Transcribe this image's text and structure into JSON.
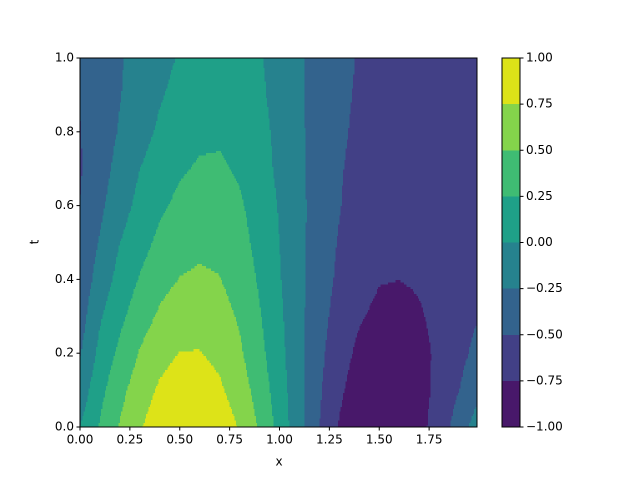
{
  "chart_data": {
    "type": "contour",
    "xlabel": "x",
    "ylabel": "t",
    "x": [
      0,
      0.1,
      0.2,
      0.3,
      0.4,
      0.5,
      0.6,
      0.7,
      0.8,
      0.9,
      1.0,
      1.1,
      1.2,
      1.3,
      1.4,
      1.5,
      1.6,
      1.7,
      1.8,
      1.9,
      2.0
    ],
    "y": [
      0,
      0.1,
      0.2,
      0.3,
      0.4,
      0.5,
      0.6,
      0.7,
      0.8,
      0.9,
      1.0
    ],
    "z": [
      [
        0,
        0.27,
        0.52,
        0.73,
        0.89,
        0.98,
        0.99,
        0.91,
        0.73,
        0.47,
        0.16,
        -0.17,
        -0.5,
        -0.77,
        -0.94,
        -1.0,
        -0.96,
        -0.83,
        -0.63,
        -0.38,
        -0.1
      ],
      [
        -0.15,
        0.18,
        0.43,
        0.63,
        0.79,
        0.87,
        0.88,
        0.79,
        0.63,
        0.39,
        0.12,
        -0.18,
        -0.47,
        -0.71,
        -0.87,
        -0.94,
        -0.92,
        -0.83,
        -0.69,
        -0.5,
        -0.3
      ],
      [
        -0.27,
        0.07,
        0.31,
        0.52,
        0.67,
        0.76,
        0.76,
        0.69,
        0.54,
        0.32,
        0.08,
        -0.19,
        -0.44,
        -0.66,
        -0.8,
        -0.87,
        -0.87,
        -0.81,
        -0.71,
        -0.57,
        -0.42
      ],
      [
        -0.36,
        -0.03,
        0.19,
        0.39,
        0.54,
        0.64,
        0.66,
        0.6,
        0.47,
        0.27,
        0.05,
        -0.19,
        -0.41,
        -0.6,
        -0.73,
        -0.8,
        -0.81,
        -0.77,
        -0.7,
        -0.61,
        -0.5
      ],
      [
        -0.42,
        -0.14,
        0.09,
        0.27,
        0.42,
        0.51,
        0.54,
        0.51,
        0.39,
        0.22,
        0.02,
        -0.19,
        -0.38,
        -0.55,
        -0.67,
        -0.74,
        -0.75,
        -0.73,
        -0.68,
        -0.62,
        -0.55
      ],
      [
        -0.46,
        -0.23,
        0,
        0.16,
        0.31,
        0.41,
        0.45,
        0.43,
        0.33,
        0.18,
        0,
        -0.19,
        -0.37,
        -0.52,
        -0.63,
        -0.7,
        -0.72,
        -0.71,
        -0.67,
        -0.63,
        -0.57
      ],
      [
        -0.5,
        -0.3,
        -0.1,
        0.07,
        0.21,
        0.31,
        0.37,
        0.36,
        0.28,
        0.15,
        -0.02,
        -0.19,
        -0.36,
        -0.49,
        -0.6,
        -0.67,
        -0.69,
        -0.68,
        -0.66,
        -0.62,
        -0.58
      ],
      [
        -0.52,
        -0.35,
        -0.17,
        0,
        0.12,
        0.22,
        0.28,
        0.28,
        0.22,
        0.1,
        -0.05,
        -0.21,
        -0.35,
        -0.48,
        -0.57,
        -0.63,
        -0.66,
        -0.65,
        -0.64,
        -0.61,
        -0.58
      ],
      [
        -0.51,
        -0.37,
        -0.23,
        -0.09,
        0.04,
        0.14,
        0.2,
        0.22,
        0.17,
        0.07,
        -0.06,
        -0.21,
        -0.35,
        -0.46,
        -0.55,
        -0.61,
        -0.64,
        -0.64,
        -0.62,
        -0.6,
        -0.58
      ],
      [
        -0.49,
        -0.37,
        -0.26,
        -0.14,
        -0.02,
        0.07,
        0.14,
        0.16,
        0.12,
        0.04,
        -0.08,
        -0.22,
        -0.34,
        -0.45,
        -0.53,
        -0.59,
        -0.62,
        -0.62,
        -0.61,
        -0.6,
        -0.58
      ],
      [
        -0.47,
        -0.37,
        -0.27,
        -0.17,
        -0.07,
        0.02,
        0.09,
        0.11,
        0.09,
        0.02,
        -0.09,
        -0.22,
        -0.33,
        -0.43,
        -0.52,
        -0.57,
        -0.6,
        -0.6,
        -0.6,
        -0.59,
        -0.58
      ]
    ],
    "levels": [
      -1,
      -0.75,
      -0.5,
      -0.25,
      0,
      0.25,
      0.5,
      0.75,
      1
    ],
    "colors": [
      "#48186a",
      "#424086",
      "#33638d",
      "#26828e",
      "#1fa088",
      "#3fbc73",
      "#84d44b",
      "#dde318"
    ],
    "xlim": [
      0,
      1.99
    ],
    "ylim": [
      0,
      1
    ],
    "xticks": [
      {
        "value": 0,
        "label": "0.00"
      },
      {
        "value": 0.25,
        "label": "0.25"
      },
      {
        "value": 0.5,
        "label": "0.50"
      },
      {
        "value": 0.75,
        "label": "0.75"
      },
      {
        "value": 1,
        "label": "1.00"
      },
      {
        "value": 1.25,
        "label": "1.25"
      },
      {
        "value": 1.5,
        "label": "1.50"
      },
      {
        "value": 1.75,
        "label": "1.75"
      }
    ],
    "yticks": [
      {
        "value": 0,
        "label": "0.0"
      },
      0.2,
      0.4,
      0.6,
      0.8,
      {
        "value": 1,
        "label": "1.0"
      }
    ],
    "cticks": [
      {
        "value": -1,
        "label": "−1.00"
      },
      {
        "value": -0.75,
        "label": "−0.75"
      },
      {
        "value": -0.5,
        "label": "−0.50"
      },
      {
        "value": -0.25,
        "label": "−0.25"
      },
      {
        "value": 0,
        "label": "0.00"
      },
      {
        "value": 0.25,
        "label": "0.25"
      },
      {
        "value": 0.5,
        "label": "0.50"
      },
      {
        "value": 0.75,
        "label": "0.75"
      },
      {
        "value": 1,
        "label": "1.00"
      }
    ]
  }
}
